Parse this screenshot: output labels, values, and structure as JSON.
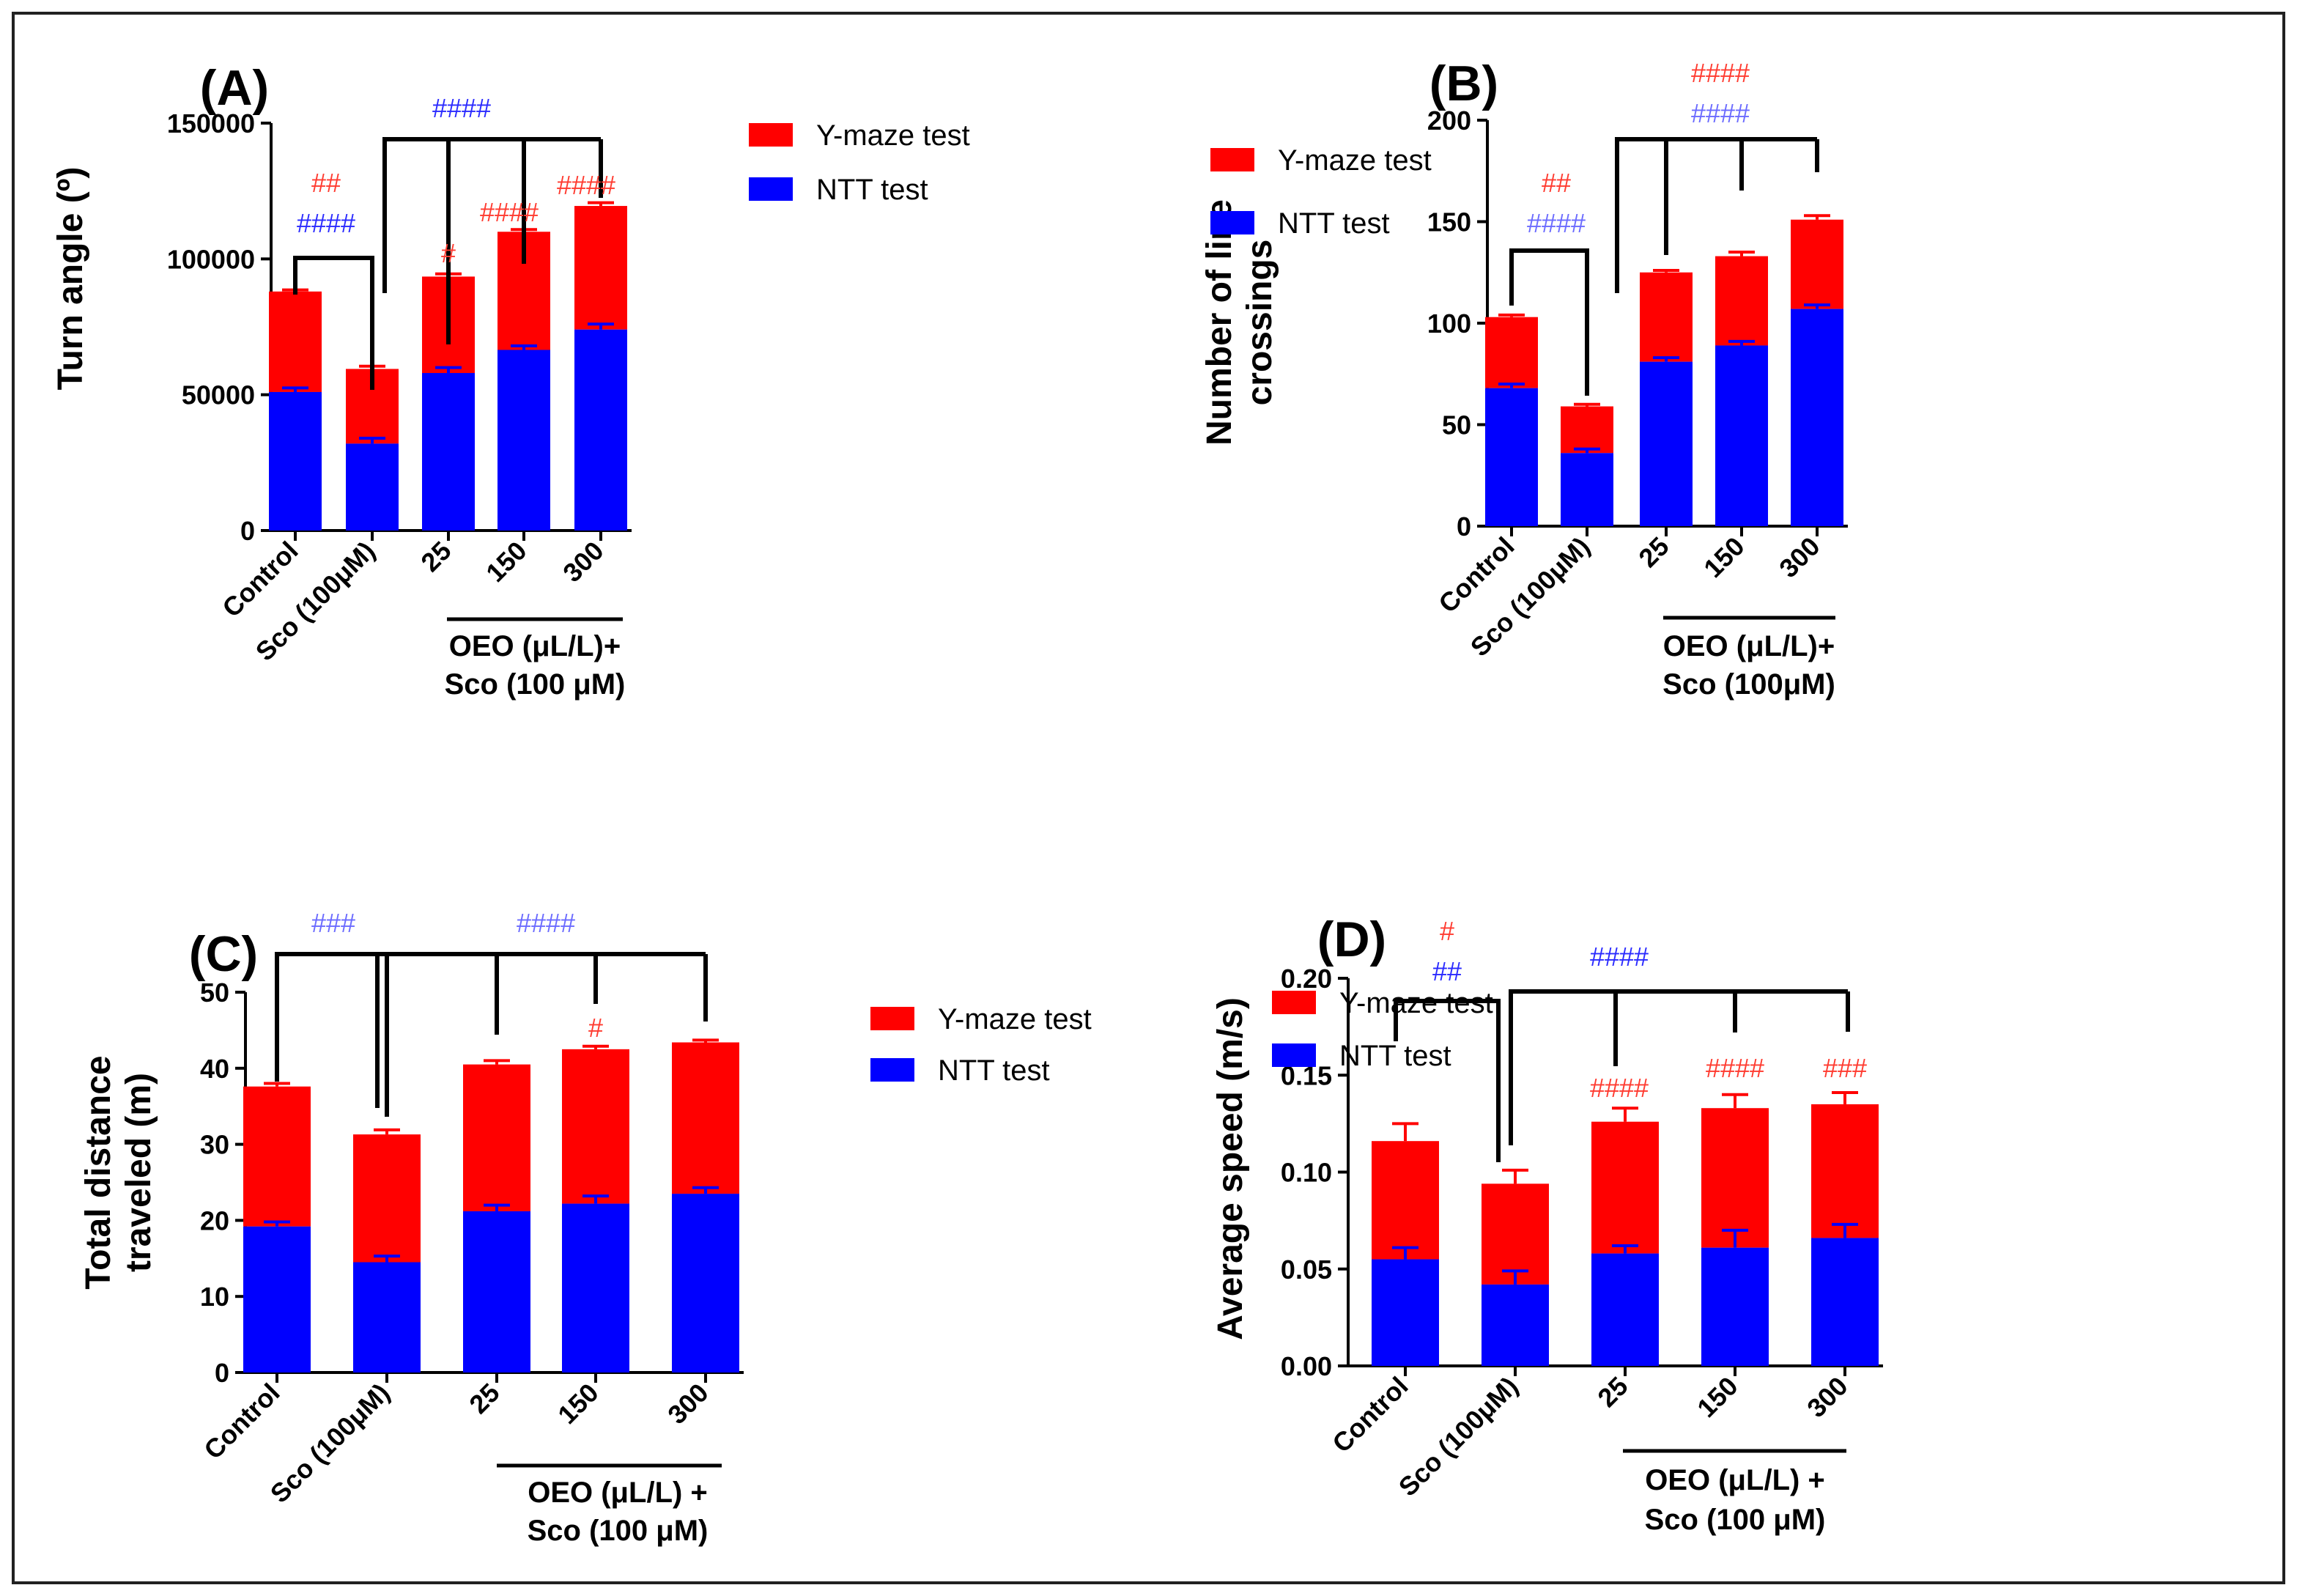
{
  "colors": {
    "y_maze": "#ff0000",
    "ntt": "#0000ff",
    "sig_red": "#ff3b30",
    "sig_blue_dark": "#2a2aff",
    "sig_blue_light": "#6b6bff",
    "frame": "#222222"
  },
  "chart_data": [
    {
      "panel": "(A)",
      "type": "bar",
      "stacked": true,
      "ylabel": "Turn angle (º)",
      "ylim": [
        0,
        150000
      ],
      "yticks": [
        "0",
        "50000",
        "100000",
        "150000"
      ],
      "categories": [
        "Control",
        "Sco (100μM)",
        "25",
        "150",
        "300"
      ],
      "group_label": [
        "OEO (μL/L)+",
        "Sco (100 μM)"
      ],
      "series": [
        {
          "name": "NTT test",
          "values": [
            51000,
            32000,
            58000,
            66500,
            74000
          ],
          "errors": [
            1500,
            2000,
            2000,
            1500,
            2000
          ]
        },
        {
          "name": "Y-maze test",
          "values": [
            37000,
            27500,
            35500,
            43500,
            45500
          ],
          "errors": [
            600,
            1000,
            1000,
            800,
            1200
          ]
        }
      ],
      "legend": [
        "Y-maze test",
        "NTT test"
      ],
      "annotations": [
        {
          "text": "##",
          "color": "red"
        },
        {
          "text": "####",
          "color": "blue"
        },
        {
          "text": "####",
          "color": "blue"
        },
        {
          "text": "#",
          "color": "red"
        },
        {
          "text": "####",
          "color": "red"
        },
        {
          "text": "####",
          "color": "red"
        }
      ]
    },
    {
      "panel": "(B)",
      "type": "bar",
      "stacked": true,
      "ylabel": [
        "Number of line",
        "crossings"
      ],
      "ylim": [
        0,
        200
      ],
      "yticks": [
        "0",
        "50",
        "100",
        "150",
        "200"
      ],
      "categories": [
        "Control",
        "Sco (100μM)",
        "25",
        "150",
        "300"
      ],
      "group_label": [
        "OEO (μL/L)+",
        "Sco (100μM)"
      ],
      "series": [
        {
          "name": "NTT test",
          "values": [
            68,
            36,
            81,
            89,
            107
          ],
          "errors": [
            2,
            2,
            2,
            2,
            2
          ]
        },
        {
          "name": "Y-maze test",
          "values": [
            35,
            23,
            44,
            44,
            44
          ],
          "errors": [
            1,
            1,
            1,
            2,
            2
          ]
        }
      ],
      "legend": [
        "Y-maze test",
        "NTT test"
      ],
      "annotations": [
        {
          "text": "##",
          "color": "red"
        },
        {
          "text": "####",
          "color": "blue"
        },
        {
          "text": "####",
          "color": "red"
        },
        {
          "text": "####",
          "color": "blue"
        }
      ]
    },
    {
      "panel": "(C)",
      "type": "bar",
      "stacked": true,
      "ylabel": [
        "Total distance",
        "traveled (m)"
      ],
      "ylim": [
        0,
        50
      ],
      "yticks": [
        "0",
        "10",
        "20",
        "30",
        "40",
        "50"
      ],
      "categories": [
        "Control",
        "Sco (100μM)",
        "25",
        "150",
        "300"
      ],
      "group_label": [
        "OEO (μL/L) +",
        "Sco (100 μM)"
      ],
      "series": [
        {
          "name": "NTT test",
          "values": [
            19.2,
            14.5,
            21.2,
            22.2,
            23.5
          ],
          "errors": [
            0.6,
            0.8,
            0.8,
            1.0,
            0.8
          ]
        },
        {
          "name": "Y-maze test",
          "values": [
            18.4,
            16.8,
            19.3,
            20.3,
            19.9
          ],
          "errors": [
            0.4,
            0.6,
            0.5,
            0.4,
            0.3
          ]
        }
      ],
      "legend": [
        "Y-maze test",
        "NTT test"
      ],
      "annotations": [
        {
          "text": "###",
          "color": "blue"
        },
        {
          "text": "####",
          "color": "blue"
        },
        {
          "text": "#",
          "color": "red"
        }
      ]
    },
    {
      "panel": "(D)",
      "type": "bar",
      "stacked": true,
      "ylabel": "Average speed (m/s)",
      "ylim": [
        0,
        0.2
      ],
      "yticks": [
        "0.00",
        "0.05",
        "0.10",
        "0.15",
        "0.20"
      ],
      "categories": [
        "Control",
        "Sco (100μM)",
        "25",
        "150",
        "300"
      ],
      "group_label": [
        "OEO (μL/L) +",
        "Sco (100 μM)"
      ],
      "series": [
        {
          "name": "NTT test",
          "values": [
            0.055,
            0.042,
            0.058,
            0.061,
            0.066
          ],
          "errors": [
            0.006,
            0.007,
            0.004,
            0.009,
            0.007
          ]
        },
        {
          "name": "Y-maze test",
          "values": [
            0.061,
            0.052,
            0.068,
            0.072,
            0.069
          ],
          "errors": [
            0.009,
            0.007,
            0.007,
            0.007,
            0.006
          ]
        }
      ],
      "legend": [
        "Y-maze test",
        "NTT test"
      ],
      "annotations": [
        {
          "text": "#",
          "color": "red"
        },
        {
          "text": "##",
          "color": "blue"
        },
        {
          "text": "####",
          "color": "blue"
        },
        {
          "text": "####",
          "color": "red"
        },
        {
          "text": "####",
          "color": "red"
        },
        {
          "text": "###",
          "color": "red"
        }
      ]
    }
  ]
}
